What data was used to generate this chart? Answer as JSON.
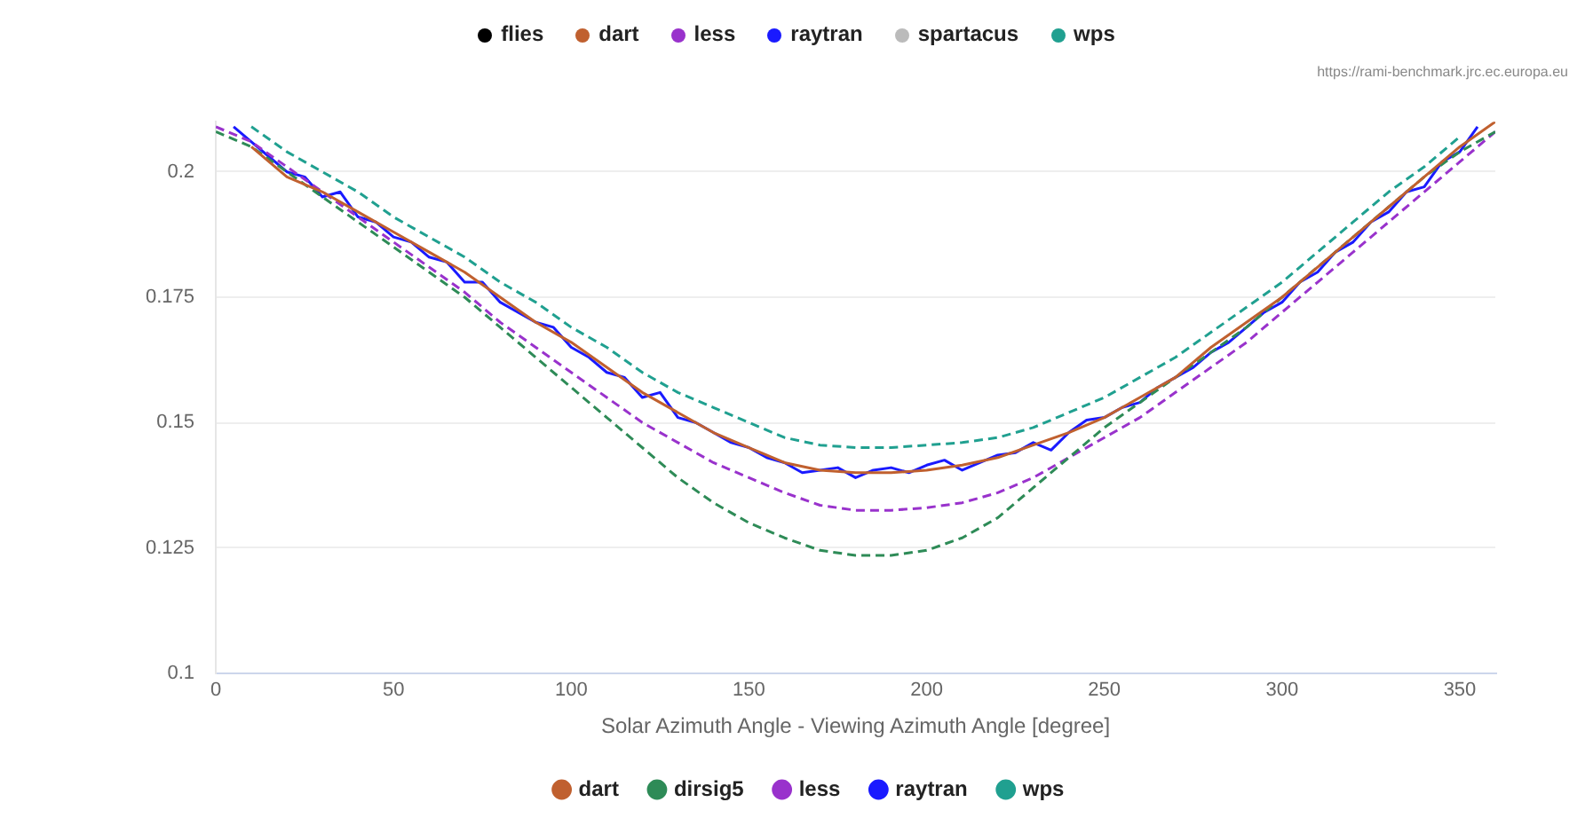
{
  "chart_data": [
    {
      "type": "other",
      "annotations": [
        "flies",
        "dart",
        "less",
        "raytran",
        "spartacus",
        "wps",
        "https://rami-benchmark.jrc.ec.europa.eu"
      ]
    },
    {
      "type": "line",
      "xlabel": "Solar Azimuth Angle - Viewing Azimuth Angle [degree]",
      "legend": "bottom",
      "grid": "y",
      "xlim": [
        0,
        360
      ],
      "xticks": [
        0,
        50,
        100,
        150,
        200,
        250,
        300,
        350
      ],
      "ylim": [
        0.1,
        0.21
      ],
      "yticks": [
        0.1,
        0.125,
        0.15,
        0.175,
        0.2
      ],
      "x": [
        0,
        10,
        20,
        30,
        40,
        50,
        60,
        70,
        80,
        90,
        100,
        110,
        120,
        130,
        140,
        150,
        160,
        170,
        180,
        190,
        200,
        210,
        220,
        230,
        240,
        250,
        260,
        270,
        280,
        290,
        300,
        310,
        320,
        330,
        340,
        350,
        360
      ],
      "series": [
        {
          "name": "dart",
          "color": "#c0602f",
          "line_style": "solid",
          "values": [
            null,
            0.205,
            0.199,
            0.196,
            0.192,
            0.188,
            0.184,
            0.18,
            0.175,
            0.17,
            0.166,
            0.161,
            0.156,
            0.152,
            0.148,
            0.145,
            0.142,
            0.1405,
            0.14,
            0.14,
            0.1405,
            0.1415,
            0.143,
            0.1455,
            0.148,
            0.151,
            0.155,
            0.159,
            0.165,
            0.17,
            0.175,
            0.181,
            0.187,
            0.193,
            0.199,
            0.205,
            0.21
          ]
        },
        {
          "name": "dirsig5",
          "color": "#2e8b57",
          "line_style": "dashed",
          "values": [
            0.208,
            0.205,
            0.2,
            0.195,
            0.19,
            0.185,
            0.18,
            0.175,
            0.169,
            0.163,
            0.157,
            0.151,
            0.145,
            0.139,
            0.134,
            0.13,
            0.127,
            0.1245,
            0.1235,
            0.1235,
            0.1245,
            0.127,
            0.131,
            0.137,
            0.143,
            0.149,
            0.154,
            0.159,
            0.164,
            0.169,
            0.175,
            0.181,
            0.187,
            0.193,
            0.199,
            0.204,
            0.208
          ]
        },
        {
          "name": "less",
          "color": "#9932cc",
          "line_style": "dashed",
          "values": [
            0.209,
            0.206,
            0.201,
            0.196,
            0.191,
            0.186,
            0.181,
            0.176,
            0.17,
            0.165,
            0.16,
            0.155,
            0.15,
            0.146,
            0.142,
            0.139,
            0.136,
            0.1335,
            0.1325,
            0.1325,
            0.133,
            0.134,
            0.136,
            0.139,
            0.143,
            0.147,
            0.151,
            0.156,
            0.161,
            0.166,
            0.172,
            0.178,
            0.184,
            0.19,
            0.196,
            0.202,
            0.208
          ]
        },
        {
          "name": "raytran",
          "color": "#1a1aff",
          "line_style": "solid",
          "x": [
            5,
            10,
            15,
            20,
            25,
            30,
            35,
            40,
            45,
            50,
            55,
            60,
            65,
            70,
            75,
            80,
            85,
            90,
            95,
            100,
            105,
            110,
            115,
            120,
            125,
            130,
            135,
            140,
            145,
            150,
            155,
            160,
            165,
            170,
            175,
            180,
            185,
            190,
            195,
            200,
            205,
            210,
            215,
            220,
            225,
            230,
            235,
            240,
            245,
            250,
            255,
            260,
            265,
            270,
            275,
            280,
            285,
            290,
            295,
            300,
            305,
            310,
            315,
            320,
            325,
            330,
            335,
            340,
            345,
            350,
            355
          ],
          "values": [
            0.209,
            0.206,
            0.203,
            0.2,
            0.199,
            0.195,
            0.196,
            0.191,
            0.19,
            0.187,
            0.186,
            0.183,
            0.182,
            0.178,
            0.178,
            0.174,
            0.172,
            0.17,
            0.169,
            0.165,
            0.163,
            0.16,
            0.159,
            0.155,
            0.156,
            0.151,
            0.15,
            0.148,
            0.146,
            0.145,
            0.143,
            0.142,
            0.14,
            0.1405,
            0.141,
            0.139,
            0.1405,
            0.141,
            0.14,
            0.1415,
            0.1425,
            0.1405,
            0.142,
            0.1435,
            0.144,
            0.146,
            0.1445,
            0.148,
            0.1505,
            0.151,
            0.153,
            0.154,
            0.157,
            0.159,
            0.161,
            0.164,
            0.166,
            0.169,
            0.172,
            0.174,
            0.178,
            0.18,
            0.184,
            0.186,
            0.19,
            0.192,
            0.196,
            0.197,
            0.202,
            0.204,
            0.209
          ]
        },
        {
          "name": "wps",
          "color": "#20a090",
          "line_style": "dashed",
          "values": [
            null,
            0.209,
            0.204,
            0.2,
            0.196,
            0.191,
            0.187,
            0.183,
            0.178,
            0.174,
            0.169,
            0.165,
            0.16,
            0.156,
            0.153,
            0.15,
            0.147,
            0.1455,
            0.145,
            0.145,
            0.1455,
            0.146,
            0.147,
            0.149,
            0.152,
            0.155,
            0.159,
            0.163,
            0.168,
            0.173,
            0.178,
            0.184,
            0.19,
            0.196,
            0.201,
            0.207,
            null
          ]
        }
      ]
    }
  ]
}
